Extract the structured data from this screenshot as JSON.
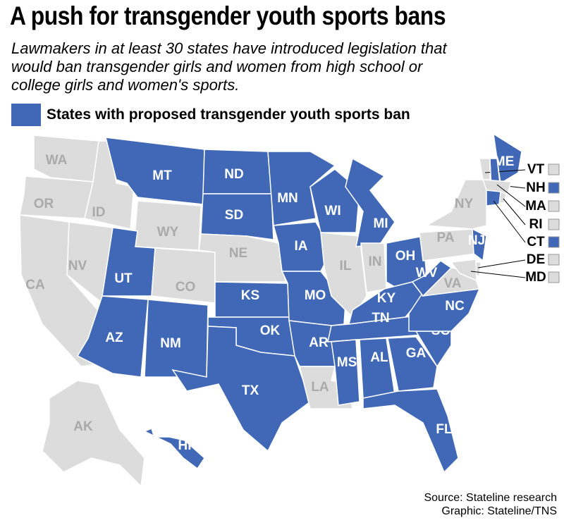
{
  "header": {
    "title": "A push for transgender youth sports bans",
    "subtitle": "Lawmakers in at least 30 states have introduced legislation that would ban transgender girls and women from high school or college girls and women's sports."
  },
  "legend": {
    "label": "States with proposed transgender youth sports ban",
    "color": "#4068b6"
  },
  "map": {
    "other_color": "#dcdcdc",
    "states": [
      {
        "label": "WA",
        "proposed_ban": false
      },
      {
        "label": "OR",
        "proposed_ban": false
      },
      {
        "label": "CA",
        "proposed_ban": false
      },
      {
        "label": "NV",
        "proposed_ban": false
      },
      {
        "label": "ID",
        "proposed_ban": false
      },
      {
        "label": "MT",
        "proposed_ban": true
      },
      {
        "label": "WY",
        "proposed_ban": false
      },
      {
        "label": "UT",
        "proposed_ban": true
      },
      {
        "label": "CO",
        "proposed_ban": false
      },
      {
        "label": "AZ",
        "proposed_ban": true
      },
      {
        "label": "NM",
        "proposed_ban": true
      },
      {
        "label": "ND",
        "proposed_ban": true
      },
      {
        "label": "SD",
        "proposed_ban": true
      },
      {
        "label": "NE",
        "proposed_ban": false
      },
      {
        "label": "KS",
        "proposed_ban": true
      },
      {
        "label": "OK",
        "proposed_ban": true
      },
      {
        "label": "TX",
        "proposed_ban": true
      },
      {
        "label": "MN",
        "proposed_ban": true
      },
      {
        "label": "IA",
        "proposed_ban": true
      },
      {
        "label": "MO",
        "proposed_ban": true
      },
      {
        "label": "AR",
        "proposed_ban": true
      },
      {
        "label": "LA",
        "proposed_ban": false
      },
      {
        "label": "WI",
        "proposed_ban": true
      },
      {
        "label": "IL",
        "proposed_ban": false
      },
      {
        "label": "MI",
        "proposed_ban": true
      },
      {
        "label": "IN",
        "proposed_ban": false
      },
      {
        "label": "OH",
        "proposed_ban": true
      },
      {
        "label": "KY",
        "proposed_ban": true
      },
      {
        "label": "TN",
        "proposed_ban": true
      },
      {
        "label": "MS",
        "proposed_ban": true
      },
      {
        "label": "AL",
        "proposed_ban": true
      },
      {
        "label": "GA",
        "proposed_ban": true
      },
      {
        "label": "FL",
        "proposed_ban": true
      },
      {
        "label": "SC",
        "proposed_ban": true
      },
      {
        "label": "NC",
        "proposed_ban": true
      },
      {
        "label": "VA",
        "proposed_ban": false
      },
      {
        "label": "WV",
        "proposed_ban": true
      },
      {
        "label": "PA",
        "proposed_ban": false
      },
      {
        "label": "NY",
        "proposed_ban": false
      },
      {
        "label": "NJ",
        "proposed_ban": true
      },
      {
        "label": "ME",
        "proposed_ban": true
      },
      {
        "label": "VT",
        "proposed_ban": false
      },
      {
        "label": "NH",
        "proposed_ban": true
      },
      {
        "label": "MA",
        "proposed_ban": false
      },
      {
        "label": "RI",
        "proposed_ban": false
      },
      {
        "label": "CT",
        "proposed_ban": true
      },
      {
        "label": "DE",
        "proposed_ban": false
      },
      {
        "label": "MD",
        "proposed_ban": false
      },
      {
        "label": "AK",
        "proposed_ban": false
      },
      {
        "label": "HI",
        "proposed_ban": true
      }
    ]
  },
  "footer": {
    "source": "Source: Stateline research",
    "credit": "Graphic: Stateline/TNS"
  }
}
